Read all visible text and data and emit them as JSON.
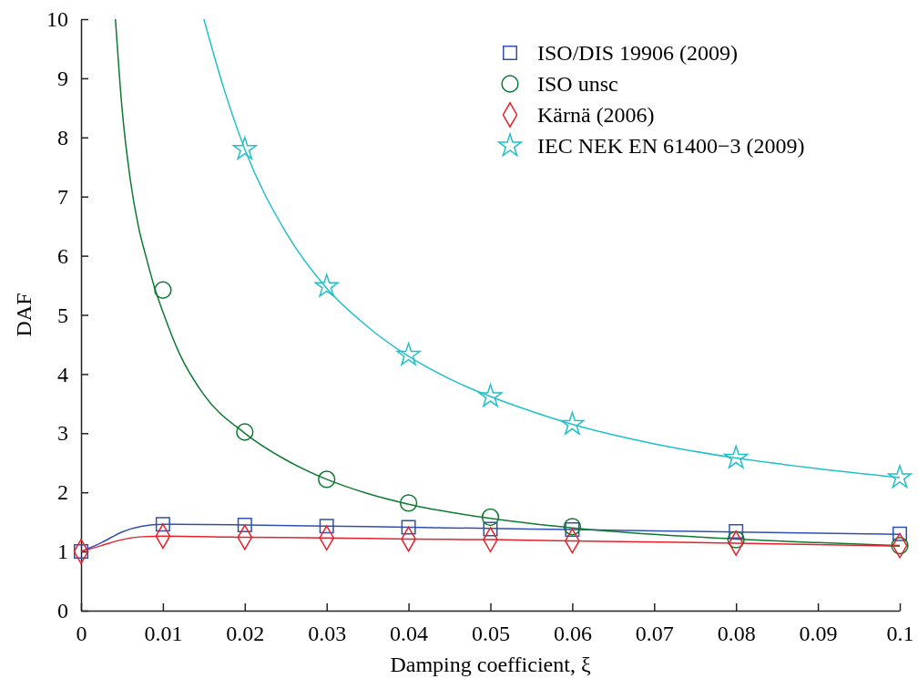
{
  "chart_data": {
    "type": "scatter",
    "xlabel": "Damping coefficient, ξ",
    "ylabel": "DAF",
    "xlim": [
      0,
      0.1
    ],
    "ylim": [
      0,
      10
    ],
    "xticks": [
      0,
      0.01,
      0.02,
      0.03,
      0.04,
      0.05,
      0.06,
      0.07,
      0.08,
      0.09,
      0.1
    ],
    "yticks": [
      0,
      1,
      2,
      3,
      4,
      5,
      6,
      7,
      8,
      9,
      10
    ],
    "grid": false,
    "legend": "top right",
    "series": [
      {
        "type": "line",
        "marker": "none",
        "color": "#3050b0",
        "x": [
          0,
          0.0025,
          0.005,
          0.0075,
          0.01,
          0.02,
          0.03,
          0.04,
          0.05,
          0.06,
          0.08,
          0.1
        ],
        "values": [
          1.0,
          1.15,
          1.33,
          1.43,
          1.46,
          1.45,
          1.43,
          1.41,
          1.39,
          1.37,
          1.33,
          1.29
        ]
      },
      {
        "type": "line",
        "marker": "none",
        "color": "#0c7a30",
        "x": [
          0.0042,
          0.005,
          0.006,
          0.007,
          0.008,
          0.009,
          0.01,
          0.012,
          0.015,
          0.02,
          0.025,
          0.03,
          0.035,
          0.04,
          0.05,
          0.06,
          0.07,
          0.08,
          0.09,
          0.1
        ],
        "values": [
          10,
          8.5,
          7.3,
          6.5,
          5.95,
          5.45,
          5.05,
          4.35,
          3.65,
          3.0,
          2.55,
          2.22,
          1.98,
          1.8,
          1.56,
          1.4,
          1.29,
          1.21,
          1.15,
          1.1
        ]
      },
      {
        "type": "line",
        "marker": "none",
        "color": "#e8202a",
        "x": [
          0,
          0.0025,
          0.005,
          0.0075,
          0.01,
          0.02,
          0.03,
          0.04,
          0.05,
          0.06,
          0.08,
          0.1
        ],
        "values": [
          1.0,
          1.1,
          1.2,
          1.25,
          1.26,
          1.24,
          1.23,
          1.21,
          1.2,
          1.18,
          1.14,
          1.09
        ]
      },
      {
        "type": "line",
        "marker": "none",
        "color": "#20c0c8",
        "x": [
          0.015,
          0.0175,
          0.02,
          0.025,
          0.03,
          0.035,
          0.04,
          0.045,
          0.05,
          0.055,
          0.06,
          0.07,
          0.08,
          0.09,
          0.1
        ],
        "values": [
          10,
          8.8,
          7.8,
          6.4,
          5.45,
          4.8,
          4.3,
          3.92,
          3.62,
          3.37,
          3.15,
          2.82,
          2.58,
          2.4,
          2.25
        ]
      },
      {
        "name": "ISO/DIS 19906 (2009)",
        "marker": "square",
        "color": "#3050b0",
        "x": [
          0,
          0.01,
          0.02,
          0.03,
          0.04,
          0.05,
          0.06,
          0.08,
          0.1
        ],
        "values": [
          1.0,
          1.46,
          1.45,
          1.43,
          1.41,
          1.38,
          1.37,
          1.34,
          1.3
        ]
      },
      {
        "name": "ISO unsc",
        "marker": "circle",
        "color": "#0c7a30",
        "x": [
          0.01,
          0.02,
          0.03,
          0.04,
          0.05,
          0.06,
          0.08,
          0.1
        ],
        "values": [
          5.42,
          3.02,
          2.22,
          1.82,
          1.58,
          1.42,
          1.2,
          1.1
        ]
      },
      {
        "name": "Kärnä (2006)",
        "marker": "diamond",
        "color": "#e8202a",
        "x": [
          0,
          0.01,
          0.02,
          0.03,
          0.04,
          0.05,
          0.06,
          0.08,
          0.1
        ],
        "values": [
          1.0,
          1.26,
          1.24,
          1.23,
          1.21,
          1.2,
          1.18,
          1.14,
          1.1
        ]
      },
      {
        "name": "IEC NEK EN 61400−3 (2009)",
        "marker": "star",
        "color": "#20c0c8",
        "x": [
          0.02,
          0.03,
          0.04,
          0.05,
          0.06,
          0.08,
          0.1
        ],
        "values": [
          7.8,
          5.48,
          4.32,
          3.62,
          3.15,
          2.58,
          2.25
        ]
      }
    ]
  }
}
